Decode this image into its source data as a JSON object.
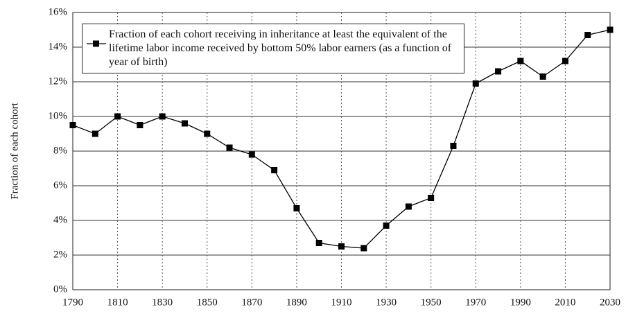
{
  "chart_data": {
    "type": "line",
    "y_label": "Fraction of each cohort",
    "x": [
      1790,
      1800,
      1810,
      1820,
      1830,
      1840,
      1850,
      1860,
      1870,
      1880,
      1890,
      1900,
      1910,
      1920,
      1930,
      1940,
      1950,
      1960,
      1970,
      1980,
      1990,
      2000,
      2010,
      2020,
      2030
    ],
    "series": [
      {
        "name": "Fraction of each cohort receiving in inheritance at least the equivalent of the lifetime labor income received by bottom 50% labor earners (as a function of year of birth)",
        "color": "#000000",
        "values": [
          9.5,
          9.0,
          10.0,
          9.5,
          10.0,
          9.6,
          9.0,
          8.2,
          7.8,
          6.9,
          4.7,
          2.7,
          2.5,
          2.4,
          3.7,
          4.8,
          5.3,
          8.3,
          11.9,
          12.6,
          13.2,
          12.3,
          13.2,
          14.7,
          15.0
        ]
      }
    ],
    "xlim": [
      1790,
      2030
    ],
    "xticks": [
      1790,
      1810,
      1830,
      1850,
      1870,
      1890,
      1910,
      1930,
      1950,
      1970,
      1990,
      2010,
      2030
    ],
    "ylim": [
      0,
      16
    ],
    "yticks": [
      {
        "value": 0,
        "label": "0%"
      },
      {
        "value": 2,
        "label": "2%"
      },
      {
        "value": 4,
        "label": "4%"
      },
      {
        "value": 6,
        "label": "6%"
      },
      {
        "value": 8,
        "label": "8%"
      },
      {
        "value": 10,
        "label": "10%"
      },
      {
        "value": 12,
        "label": "12%"
      },
      {
        "value": 14,
        "label": "14%"
      },
      {
        "value": 16,
        "label": "16%"
      }
    ],
    "grid": true,
    "legend": "upper left"
  }
}
